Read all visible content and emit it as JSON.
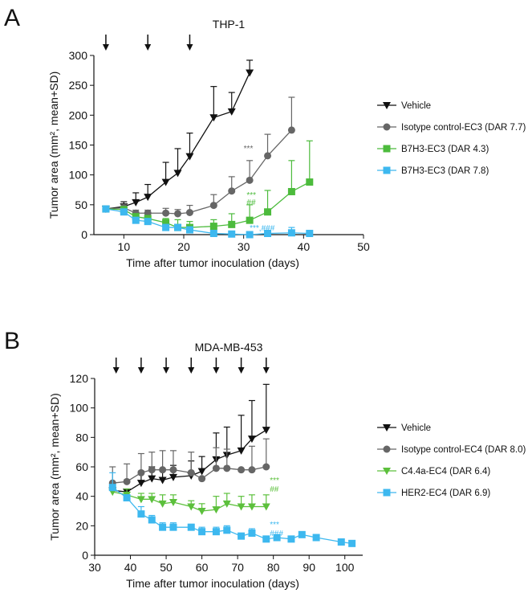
{
  "chart_data": [
    {
      "panel": "A",
      "type": "line",
      "title": "THP-1",
      "xlabel": "Time after tumor inoculation (days)",
      "ylabel": "Tumor area (mm², mean+SD)",
      "xlim": [
        5,
        50
      ],
      "ylim": [
        0,
        300
      ],
      "xticks": [
        10,
        20,
        30,
        40,
        50
      ],
      "yticks": [
        0,
        50,
        100,
        150,
        200,
        250,
        300
      ],
      "arrows": [
        7,
        14,
        21
      ],
      "legend": "right",
      "series": [
        {
          "name": "Vehicle",
          "color": "#111111",
          "marker": "tri-down",
          "x": [
            7,
            10,
            12,
            14,
            17,
            19,
            21,
            25,
            28,
            31
          ],
          "y": [
            43,
            47,
            54,
            63,
            88,
            103,
            131,
            196,
            206,
            271
          ],
          "sd_top": [
            46,
            55,
            70,
            84,
            121,
            144,
            170,
            248,
            238,
            292
          ]
        },
        {
          "name": "Isotype control-EC3 (DAR 7.7)",
          "color": "#666666",
          "marker": "circle",
          "x": [
            7,
            10,
            12,
            14,
            17,
            19,
            21,
            25,
            28,
            31,
            34,
            38
          ],
          "y": [
            43,
            45,
            36,
            36,
            36,
            35,
            37,
            49,
            73,
            91,
            132,
            175
          ],
          "sd_top": [
            46,
            50,
            41,
            41,
            44,
            42,
            49,
            67,
            97,
            124,
            168,
            230
          ]
        },
        {
          "name": "B7H3-EC3 (DAR 4.3)",
          "color": "#4cbb3c",
          "marker": "square",
          "x": [
            7,
            10,
            12,
            14,
            17,
            19,
            21,
            25,
            28,
            31,
            34,
            38,
            41
          ],
          "y": [
            43,
            42,
            30,
            27,
            20,
            12,
            12,
            14,
            17,
            24,
            38,
            72,
            88
          ],
          "sd_top": [
            46,
            44,
            35,
            32,
            27,
            25,
            22,
            25,
            35,
            50,
            74,
            124,
            157
          ]
        },
        {
          "name": "B7H3-EC3 (DAR 7.8)",
          "color": "#3db8ef",
          "marker": "square",
          "x": [
            7,
            10,
            12,
            14,
            17,
            19,
            21,
            25,
            28,
            31,
            34,
            38,
            41
          ],
          "y": [
            43,
            38,
            24,
            22,
            12,
            12,
            8,
            2,
            1,
            0,
            2,
            3,
            2
          ],
          "sd_top": [
            46,
            41,
            27,
            26,
            15,
            15,
            11,
            4,
            3,
            1,
            5,
            12,
            7
          ]
        }
      ],
      "annotations": [
        {
          "text": "***",
          "x": 30,
          "y": 140,
          "color": "#666666"
        },
        {
          "text": "***",
          "x": 30.5,
          "y": 62,
          "color": "#4cbb3c"
        },
        {
          "text": "##",
          "x": 30.5,
          "y": 50,
          "color": "#4cbb3c"
        },
        {
          "text": "***,###",
          "x": 31,
          "y": 7,
          "color": "#3db8ef"
        }
      ]
    },
    {
      "panel": "B",
      "type": "line",
      "title": "MDA-MB-453",
      "xlabel": "Time after tumor inoculation (days)",
      "ylabel": "Tumor area (mm², mean+SD)",
      "xlim": [
        30,
        105
      ],
      "ylim": [
        0,
        120
      ],
      "xticks": [
        30,
        40,
        50,
        60,
        70,
        80,
        90,
        100
      ],
      "yticks": [
        0,
        20,
        40,
        60,
        80,
        100,
        120
      ],
      "arrows": [
        36,
        43,
        50,
        57,
        64,
        71,
        78
      ],
      "legend": "right",
      "series": [
        {
          "name": "Vehicle",
          "color": "#111111",
          "marker": "tri-down",
          "x": [
            35,
            39,
            43,
            46,
            49,
            52,
            57,
            60,
            64,
            67,
            71,
            74,
            78
          ],
          "y": [
            44,
            43,
            49,
            52,
            51,
            53,
            54,
            57,
            65,
            68,
            71,
            79,
            85
          ],
          "sd_top": [
            48,
            45,
            57,
            60,
            58,
            61,
            64,
            67,
            83,
            87,
            95,
            105,
            116
          ]
        },
        {
          "name": "Isotype control-EC4 (DAR 8.0)",
          "color": "#666666",
          "marker": "circle",
          "x": [
            35,
            39,
            43,
            46,
            49,
            52,
            57,
            60,
            64,
            67,
            71,
            74,
            78
          ],
          "y": [
            49,
            50,
            56,
            58,
            58,
            58,
            56,
            52,
            59,
            59,
            58,
            58,
            60
          ],
          "sd_top": [
            60,
            62,
            69,
            70,
            71,
            71,
            70,
            52,
            73,
            72,
            58,
            74,
            79
          ]
        },
        {
          "name": "C4.4a-EC4 (DAR 6.4)",
          "color": "#5cc03c",
          "marker": "tri-down",
          "x": [
            35,
            39,
            43,
            46,
            49,
            52,
            57,
            60,
            64,
            67,
            71,
            74,
            78
          ],
          "y": [
            43,
            41,
            38,
            38,
            35,
            36,
            33,
            30,
            31,
            35,
            33,
            33,
            33
          ],
          "sd_top": [
            45,
            45,
            42,
            42,
            41,
            41,
            37,
            35,
            40,
            42,
            40,
            41,
            41
          ]
        },
        {
          "name": "HER2-EC4 (DAR 6.9)",
          "color": "#3db8ef",
          "marker": "square",
          "x": [
            35,
            39,
            43,
            46,
            49,
            52,
            57,
            60,
            64,
            67,
            71,
            74,
            78,
            81,
            85,
            88,
            92,
            99,
            102
          ],
          "y": [
            46,
            39,
            28,
            24,
            19,
            19,
            19,
            16,
            16,
            17,
            13,
            15,
            11,
            12,
            11,
            14,
            12,
            9,
            8
          ],
          "sd_top": [
            56,
            40,
            33,
            27,
            22,
            22,
            21,
            19,
            19,
            20,
            15,
            18,
            13,
            13,
            12,
            15,
            14,
            11,
            9
          ]
        }
      ],
      "annotations": [
        {
          "text": "***",
          "x": 79,
          "y": 49,
          "color": "#5cc03c"
        },
        {
          "text": "##",
          "x": 79,
          "y": 43,
          "color": "#5cc03c"
        },
        {
          "text": "***",
          "x": 79,
          "y": 19,
          "color": "#3db8ef"
        },
        {
          "text": "###",
          "x": 79,
          "y": 13,
          "color": "#3db8ef"
        }
      ]
    }
  ]
}
